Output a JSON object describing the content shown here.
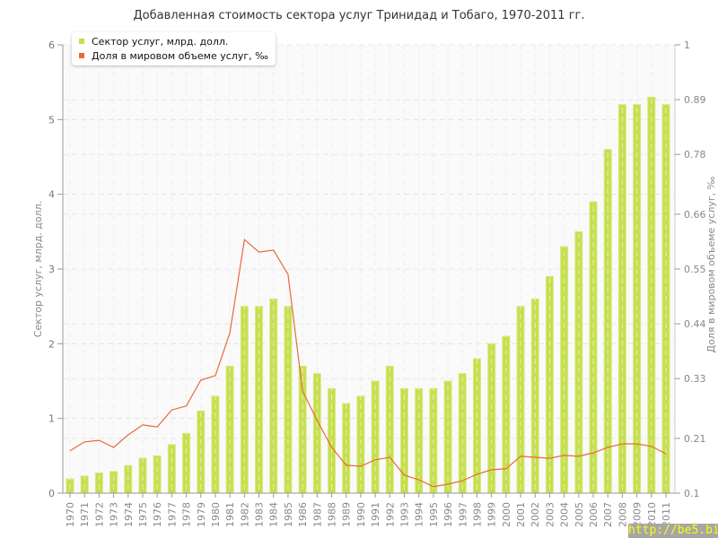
{
  "chart_data": {
    "type": "bar+line",
    "title": "Добавленная стоимость сектора услуг Тринидад и Тобаго, 1970-2011 гг.",
    "categories": [
      "1970",
      "1971",
      "1972",
      "1973",
      "1974",
      "1975",
      "1976",
      "1977",
      "1978",
      "1979",
      "1980",
      "1981",
      "1982",
      "1983",
      "1984",
      "1985",
      "1986",
      "1987",
      "1988",
      "1989",
      "1990",
      "1991",
      "1992",
      "1993",
      "1994",
      "1995",
      "1996",
      "1997",
      "1998",
      "1999",
      "2000",
      "2001",
      "2002",
      "2003",
      "2004",
      "2005",
      "2006",
      "2007",
      "2008",
      "2009",
      "2010",
      "2011"
    ],
    "series": [
      {
        "name": "Сектор услуг, млрд. долл.",
        "type": "bar",
        "axis": "left",
        "color": "#c5e04a",
        "values": [
          0.19,
          0.23,
          0.27,
          0.29,
          0.37,
          0.47,
          0.5,
          0.65,
          0.8,
          1.1,
          1.3,
          1.7,
          2.5,
          2.5,
          2.6,
          2.5,
          1.7,
          1.6,
          1.4,
          1.2,
          1.3,
          1.5,
          1.7,
          1.4,
          1.4,
          1.4,
          1.5,
          1.6,
          1.8,
          2.0,
          2.1,
          2.5,
          2.6,
          2.9,
          3.3,
          3.5,
          3.9,
          4.6,
          5.2,
          5.2,
          5.3,
          5.2
        ]
      },
      {
        "name": "Доля в мировом объеме услуг, ‰",
        "type": "line",
        "axis": "right",
        "color": "#e8693a",
        "values": [
          0.185,
          0.203,
          0.206,
          0.192,
          0.217,
          0.237,
          0.233,
          0.267,
          0.275,
          0.327,
          0.336,
          0.422,
          0.609,
          0.584,
          0.588,
          0.539,
          0.305,
          0.246,
          0.192,
          0.156,
          0.154,
          0.167,
          0.172,
          0.136,
          0.127,
          0.113,
          0.118,
          0.125,
          0.138,
          0.147,
          0.149,
          0.174,
          0.172,
          0.17,
          0.176,
          0.174,
          0.181,
          0.192,
          0.199,
          0.199,
          0.194,
          0.179
        ]
      }
    ],
    "ylabel": "Сектор услуг, млрд. долл.",
    "y2label": "Доля в мировом объеме услуг, ‰",
    "ylim": [
      0,
      6
    ],
    "yticks": [
      "0",
      "1",
      "2",
      "3",
      "4",
      "5",
      "6"
    ],
    "y2lim": [
      0.1,
      1
    ],
    "y2ticks": [
      "0.1",
      "0.21",
      "0.33",
      "0.44",
      "0.55",
      "0.66",
      "0.78",
      "0.89",
      "1"
    ],
    "grid": true,
    "legend_position": "top-left"
  },
  "watermark": "http://be5.biz/"
}
